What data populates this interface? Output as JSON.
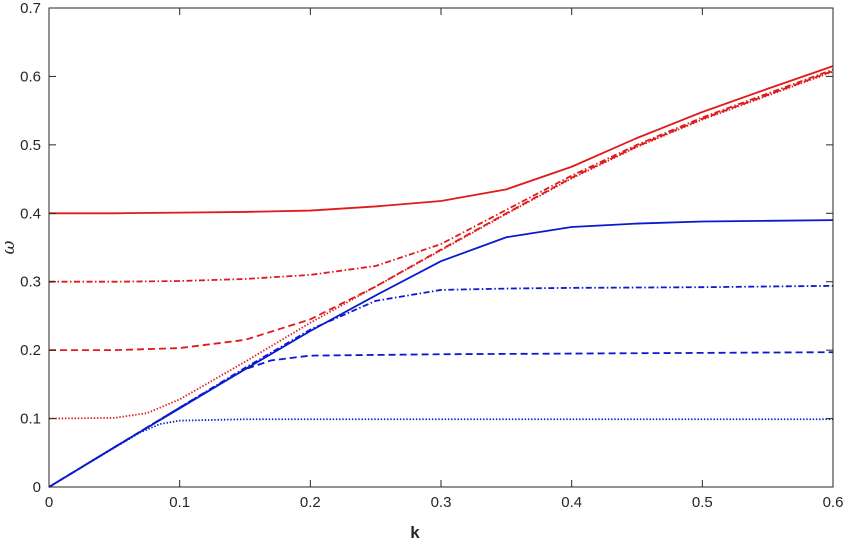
{
  "chart_data": {
    "type": "line",
    "title": "",
    "xlabel": "k",
    "ylabel": "ω",
    "xlim": [
      0,
      0.6
    ],
    "ylim": [
      0,
      0.7
    ],
    "grid": false,
    "box": true,
    "xticks": [
      "0",
      "0.1",
      "0.2",
      "0.3",
      "0.4",
      "0.5",
      "0.6"
    ],
    "yticks": [
      "0",
      "0.1",
      "0.2",
      "0.3",
      "0.4",
      "0.5",
      "0.6",
      "0.7"
    ],
    "colors": {
      "red": "#e01a1a",
      "blue": "#0a1ad0",
      "axis": "#262626"
    },
    "series": [
      {
        "color": "red",
        "style": "solid",
        "x": [
          0,
          0.05,
          0.1,
          0.15,
          0.2,
          0.25,
          0.3,
          0.35,
          0.4,
          0.45,
          0.5,
          0.55,
          0.6
        ],
        "y": [
          0.4,
          0.4,
          0.401,
          0.402,
          0.404,
          0.41,
          0.418,
          0.435,
          0.468,
          0.51,
          0.548,
          0.582,
          0.615
        ]
      },
      {
        "color": "red",
        "style": "dashdot",
        "x": [
          0,
          0.05,
          0.1,
          0.15,
          0.2,
          0.25,
          0.3,
          0.35,
          0.4,
          0.45,
          0.5,
          0.55,
          0.6
        ],
        "y": [
          0.3,
          0.3,
          0.301,
          0.304,
          0.31,
          0.323,
          0.355,
          0.405,
          0.455,
          0.5,
          0.54,
          0.575,
          0.61
        ]
      },
      {
        "color": "red",
        "style": "dashed",
        "x": [
          0,
          0.05,
          0.1,
          0.15,
          0.2,
          0.25,
          0.3,
          0.35,
          0.4,
          0.45,
          0.5,
          0.55,
          0.6
        ],
        "y": [
          0.2,
          0.2,
          0.203,
          0.215,
          0.245,
          0.293,
          0.347,
          0.4,
          0.452,
          0.498,
          0.538,
          0.573,
          0.608
        ]
      },
      {
        "color": "red",
        "style": "dotted",
        "x": [
          0,
          0.05,
          0.075,
          0.1,
          0.15,
          0.2,
          0.25,
          0.3,
          0.35,
          0.4,
          0.45,
          0.5,
          0.55,
          0.6
        ],
        "y": [
          0.1,
          0.101,
          0.108,
          0.128,
          0.183,
          0.24,
          0.293,
          0.346,
          0.399,
          0.451,
          0.497,
          0.537,
          0.572,
          0.607
        ]
      },
      {
        "color": "blue",
        "style": "solid",
        "x": [
          0,
          0.05,
          0.1,
          0.15,
          0.2,
          0.25,
          0.3,
          0.35,
          0.4,
          0.45,
          0.5,
          0.55,
          0.6
        ],
        "y": [
          0,
          0.058,
          0.115,
          0.172,
          0.228,
          0.28,
          0.33,
          0.365,
          0.38,
          0.385,
          0.388,
          0.389,
          0.39
        ]
      },
      {
        "color": "blue",
        "style": "dashdot",
        "x": [
          0,
          0.05,
          0.1,
          0.15,
          0.2,
          0.25,
          0.3,
          0.35,
          0.4,
          0.5,
          0.6
        ],
        "y": [
          0,
          0.058,
          0.116,
          0.174,
          0.23,
          0.272,
          0.288,
          0.29,
          0.291,
          0.292,
          0.294
        ]
      },
      {
        "color": "blue",
        "style": "dashed",
        "x": [
          0,
          0.05,
          0.1,
          0.13,
          0.15,
          0.17,
          0.2,
          0.3,
          0.4,
          0.5,
          0.6
        ],
        "y": [
          0,
          0.058,
          0.116,
          0.15,
          0.172,
          0.185,
          0.192,
          0.194,
          0.195,
          0.196,
          0.197
        ]
      },
      {
        "color": "blue",
        "style": "dotted",
        "x": [
          0,
          0.04,
          0.07,
          0.085,
          0.1,
          0.15,
          0.2,
          0.3,
          0.4,
          0.5,
          0.6
        ],
        "y": [
          0,
          0.046,
          0.08,
          0.092,
          0.097,
          0.099,
          0.099,
          0.099,
          0.099,
          0.099,
          0.099
        ]
      }
    ]
  }
}
